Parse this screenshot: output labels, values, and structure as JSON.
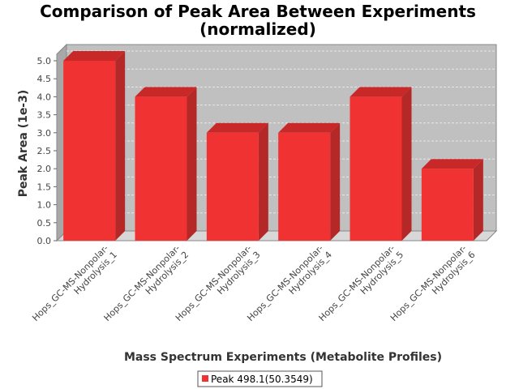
{
  "chart_data": {
    "type": "bar",
    "title": "Comparison of Peak Area Between Experiments",
    "subtitle": "(normalized)",
    "xlabel": "Mass Spectrum Experiments (Metabolite Profiles)",
    "ylabel": "Peak Area (1e-3)",
    "categories": [
      [
        "Hops_GC-MS-Nonpolar-",
        "Hydrolysis_1"
      ],
      [
        "Hops_GC-MS-Nonpolar-",
        "Hydrolysis_2"
      ],
      [
        "Hops_GC-MS-Nonpolar-",
        "Hydrolysis_3"
      ],
      [
        "Hops_GC-MS-Nonpolar-",
        "Hydrolysis_4"
      ],
      [
        "Hops_GC-MS-Nonpolar-",
        "Hydrolysis_5"
      ],
      [
        "Hops_GC-MS-Nonpolar-",
        "Hydrolysis_6"
      ]
    ],
    "series": [
      {
        "name": "Peak 498.1(50.3549)",
        "values": [
          5.0,
          4.0,
          3.0,
          3.0,
          4.0,
          2.0
        ]
      }
    ],
    "ylim": [
      0,
      5.0
    ],
    "yticks": [
      "0.0",
      "0.5",
      "1.0",
      "1.5",
      "2.0",
      "2.5",
      "3.0",
      "3.5",
      "4.0",
      "4.5",
      "5.0"
    ],
    "grid": true,
    "legend_position": "bottom-center",
    "colors": {
      "bar_front": "#f03232",
      "bar_side": "#b42828",
      "bar_top": "#c82828",
      "plot_back": "#c0c0c0",
      "plot_floor": "#d8d8d8",
      "grid": "#e8e8e8"
    }
  }
}
